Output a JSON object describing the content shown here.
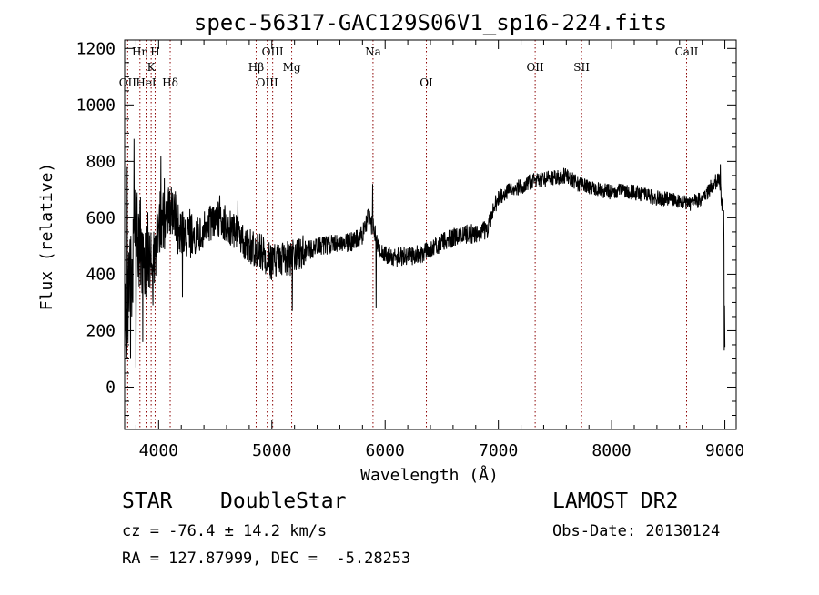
{
  "chart_data": {
    "type": "line",
    "title": "spec-56317-GAC129S06V1_sp16-224.fits",
    "xlabel": "Wavelength (Å)",
    "ylabel": "Flux (relative)",
    "xlim": [
      3700,
      9100
    ],
    "ylim": [
      -150,
      1230
    ],
    "xticks": [
      4000,
      5000,
      6000,
      7000,
      8000,
      9000
    ],
    "xtick_labels": [
      "4000",
      "5000",
      "6000",
      "7000",
      "8000",
      "9000"
    ],
    "yticks": [
      0,
      200,
      400,
      600,
      800,
      1000,
      1200
    ],
    "ytick_labels": [
      "0",
      "200",
      "400",
      "600",
      "800",
      "1000",
      "1200"
    ],
    "lines": [
      {
        "label": "OII",
        "x": 3727,
        "row": 3
      },
      {
        "label": "Hη",
        "x": 3835,
        "row": 1
      },
      {
        "label": "HeI",
        "x": 3889,
        "row": 3
      },
      {
        "label": "K",
        "x": 3934,
        "row": 2
      },
      {
        "label": "H",
        "x": 3969,
        "row": 1
      },
      {
        "label": "Hδ",
        "x": 4102,
        "row": 3
      },
      {
        "label": "Hβ",
        "x": 4861,
        "row": 2
      },
      {
        "label": "OIII",
        "x": 4959,
        "row": 3
      },
      {
        "label": "OIII",
        "x": 5007,
        "row": 1
      },
      {
        "label": "Mg",
        "x": 5175,
        "row": 2
      },
      {
        "label": "Na",
        "x": 5893,
        "row": 1
      },
      {
        "label": "OI",
        "x": 6364,
        "row": 3
      },
      {
        "label": "OII",
        "x": 7325,
        "row": 2
      },
      {
        "label": "SII",
        "x": 7735,
        "row": 2
      },
      {
        "label": "CaII",
        "x": 8662,
        "row": 1
      }
    ],
    "series_anchors": [
      [
        3700,
        300
      ],
      [
        3720,
        250
      ],
      [
        3760,
        400
      ],
      [
        3800,
        550
      ],
      [
        3850,
        500
      ],
      [
        3900,
        470
      ],
      [
        3950,
        430
      ],
      [
        4000,
        580
      ],
      [
        4100,
        610
      ],
      [
        4200,
        560
      ],
      [
        4300,
        520
      ],
      [
        4400,
        560
      ],
      [
        4500,
        600
      ],
      [
        4600,
        580
      ],
      [
        4700,
        540
      ],
      [
        4800,
        500
      ],
      [
        4900,
        480
      ],
      [
        5000,
        440
      ],
      [
        5100,
        450
      ],
      [
        5200,
        460
      ],
      [
        5300,
        480
      ],
      [
        5400,
        500
      ],
      [
        5500,
        505
      ],
      [
        5600,
        510
      ],
      [
        5700,
        515
      ],
      [
        5800,
        540
      ],
      [
        5850,
        600
      ],
      [
        5900,
        560
      ],
      [
        5950,
        480
      ],
      [
        6000,
        470
      ],
      [
        6100,
        460
      ],
      [
        6200,
        465
      ],
      [
        6300,
        470
      ],
      [
        6400,
        490
      ],
      [
        6500,
        510
      ],
      [
        6600,
        530
      ],
      [
        6700,
        540
      ],
      [
        6800,
        545
      ],
      [
        6900,
        560
      ],
      [
        6950,
        620
      ],
      [
        7000,
        670
      ],
      [
        7100,
        700
      ],
      [
        7200,
        710
      ],
      [
        7300,
        730
      ],
      [
        7400,
        735
      ],
      [
        7500,
        745
      ],
      [
        7600,
        750
      ],
      [
        7700,
        720
      ],
      [
        7800,
        710
      ],
      [
        7900,
        700
      ],
      [
        8000,
        690
      ],
      [
        8100,
        700
      ],
      [
        8200,
        690
      ],
      [
        8300,
        680
      ],
      [
        8400,
        670
      ],
      [
        8500,
        665
      ],
      [
        8600,
        655
      ],
      [
        8700,
        650
      ],
      [
        8800,
        670
      ],
      [
        8900,
        720
      ],
      [
        8950,
        740
      ],
      [
        8990,
        600
      ],
      [
        9000,
        150
      ]
    ],
    "noise": [
      [
        3700,
        3760,
        180
      ],
      [
        3760,
        3900,
        170
      ],
      [
        3900,
        4300,
        110
      ],
      [
        4300,
        5300,
        65
      ],
      [
        5300,
        7000,
        35
      ],
      [
        7000,
        9000,
        28
      ]
    ],
    "spikes": [
      [
        3722,
        780
      ],
      [
        3752,
        100
      ],
      [
        3782,
        880
      ],
      [
        3800,
        70
      ],
      [
        3835,
        660
      ],
      [
        3860,
        160
      ],
      [
        3905,
        620
      ],
      [
        3950,
        290
      ],
      [
        4020,
        820
      ],
      [
        4050,
        740
      ],
      [
        4210,
        320
      ],
      [
        4540,
        680
      ],
      [
        4700,
        660
      ],
      [
        5180,
        270
      ],
      [
        5890,
        720
      ],
      [
        5920,
        280
      ],
      [
        8960,
        790
      ],
      [
        8995,
        130
      ]
    ]
  },
  "info": {
    "object_class": "STAR",
    "subclass": "DoubleStar",
    "survey": "LAMOST DR2",
    "redshift": "cz = -76.4 ± 14.2 km/s",
    "obs_date": "Obs-Date: 20130124",
    "coords": "RA = 127.87999, DEC =  -5.28253"
  },
  "colors": {
    "spectrum": "#000000",
    "line_markers": "#8b0000"
  }
}
